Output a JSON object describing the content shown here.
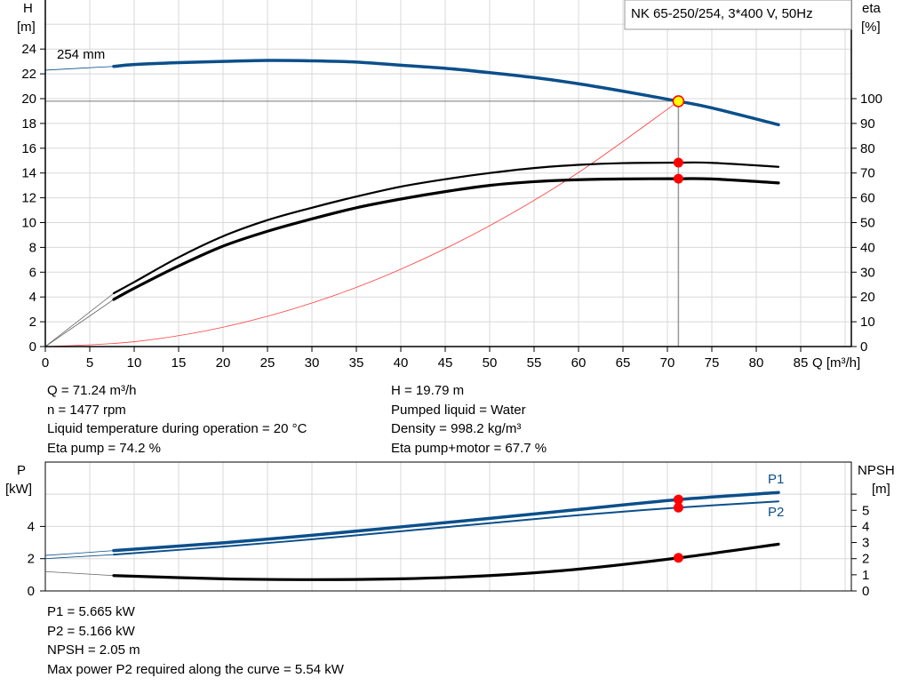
{
  "title": "NK 65-250/254, 3*400 V, 50Hz",
  "colors": {
    "blue": "#0b4f8a",
    "black": "#000000",
    "system": "#ff4040",
    "point": "#ff0000",
    "op_point": "#ffff00",
    "grid": "#d8d8d8"
  },
  "chart_data": [
    {
      "type": "line",
      "x_label": "Q [m³/h]",
      "y_label_left": [
        "H",
        "[m]"
      ],
      "y_label_right": [
        "eta",
        "[%]"
      ],
      "xlim": [
        0,
        90
      ],
      "x_ticks": [
        0,
        5,
        10,
        15,
        20,
        25,
        30,
        35,
        40,
        45,
        50,
        55,
        60,
        65,
        70,
        75,
        80,
        85
      ],
      "ylim_left": [
        0,
        28
      ],
      "y_ticks_left": [
        0,
        2,
        4,
        6,
        8,
        10,
        12,
        14,
        16,
        18,
        20,
        22,
        24
      ],
      "ylim_right": [
        0,
        140
      ],
      "y_ticks_right": [
        0,
        10,
        20,
        30,
        40,
        50,
        60,
        70,
        80,
        90,
        100
      ],
      "grid": true,
      "curve_label": "254 mm",
      "series": [
        {
          "key": "H",
          "axis": "left",
          "color": "#0b4f8a",
          "ext": [
            [
              0,
              22.3
            ],
            [
              7.7,
              22.6
            ]
          ],
          "points": [
            [
              7.7,
              22.6
            ],
            [
              10,
              22.75
            ],
            [
              15,
              22.9
            ],
            [
              20,
              23.0
            ],
            [
              25,
              23.08
            ],
            [
              30,
              23.05
            ],
            [
              35,
              22.95
            ],
            [
              40,
              22.7
            ],
            [
              45,
              22.45
            ],
            [
              50,
              22.1
            ],
            [
              55,
              21.7
            ],
            [
              60,
              21.2
            ],
            [
              65,
              20.6
            ],
            [
              71.24,
              19.79
            ],
            [
              75,
              19.25
            ],
            [
              82.5,
              17.9
            ]
          ]
        },
        {
          "key": "eta_pump",
          "axis": "right",
          "color": "#000000",
          "ext": [
            [
              0,
              0
            ],
            [
              7.7,
              21.5
            ]
          ],
          "points": [
            [
              7.7,
              21.5
            ],
            [
              10,
              26
            ],
            [
              15,
              36
            ],
            [
              20,
              44.5
            ],
            [
              25,
              51
            ],
            [
              30,
              56
            ],
            [
              35,
              60.5
            ],
            [
              40,
              64.5
            ],
            [
              45,
              67.5
            ],
            [
              50,
              70
            ],
            [
              55,
              72
            ],
            [
              60,
              73.3
            ],
            [
              65,
              74
            ],
            [
              71.24,
              74.2
            ],
            [
              75,
              74.1
            ],
            [
              82.5,
              72.5
            ]
          ]
        },
        {
          "key": "eta_pump_motor",
          "axis": "right",
          "color": "#000000",
          "ext": [
            [
              0,
              0
            ],
            [
              7.7,
              19
            ]
          ],
          "points": [
            [
              7.7,
              19
            ],
            [
              10,
              23.5
            ],
            [
              15,
              32.5
            ],
            [
              20,
              40.5
            ],
            [
              25,
              46.5
            ],
            [
              30,
              51.5
            ],
            [
              35,
              56
            ],
            [
              40,
              59.5
            ],
            [
              45,
              62.5
            ],
            [
              50,
              65
            ],
            [
              55,
              66.5
            ],
            [
              60,
              67.3
            ],
            [
              65,
              67.6
            ],
            [
              71.24,
              67.7
            ],
            [
              75,
              67.6
            ],
            [
              82.5,
              66
            ]
          ]
        },
        {
          "key": "system",
          "axis": "left",
          "color": "#ff4040",
          "points": [
            [
              0,
              0
            ],
            [
              10,
              0.39
            ],
            [
              20,
              1.56
            ],
            [
              30,
              3.51
            ],
            [
              40,
              6.24
            ],
            [
              50,
              9.75
            ],
            [
              60,
              14.04
            ],
            [
              71.24,
              19.79
            ]
          ]
        }
      ],
      "operating_point": {
        "Q": 71.24,
        "H": 19.79,
        "eta_pump": 74.2,
        "eta_pump_motor": 67.7
      }
    },
    {
      "type": "line",
      "y_label_left": [
        "P",
        "[kW]"
      ],
      "y_label_right": [
        "NPSH",
        "[m]"
      ],
      "xlim": [
        0,
        90
      ],
      "ylim_left": [
        0,
        8
      ],
      "y_ticks_left": [
        0,
        2,
        4
      ],
      "ylim_right": [
        0,
        8
      ],
      "y_ticks_right": [
        0,
        1,
        2,
        3,
        4,
        5
      ],
      "grid": true,
      "series": [
        {
          "name": "P1",
          "axis": "left",
          "color": "#0b4f8a",
          "ext": [
            [
              0,
              2.2
            ],
            [
              7.7,
              2.5
            ]
          ],
          "points": [
            [
              7.7,
              2.5
            ],
            [
              20,
              2.98
            ],
            [
              30,
              3.45
            ],
            [
              40,
              3.97
            ],
            [
              50,
              4.5
            ],
            [
              60,
              5.05
            ],
            [
              71.24,
              5.665
            ],
            [
              82.5,
              6.1
            ]
          ]
        },
        {
          "name": "P2",
          "axis": "left",
          "color": "#0b4f8a",
          "ext": [
            [
              0,
              2.0
            ],
            [
              7.7,
              2.25
            ]
          ],
          "points": [
            [
              7.7,
              2.25
            ],
            [
              20,
              2.75
            ],
            [
              30,
              3.2
            ],
            [
              40,
              3.7
            ],
            [
              50,
              4.2
            ],
            [
              60,
              4.7
            ],
            [
              71.24,
              5.166
            ],
            [
              82.5,
              5.55
            ]
          ]
        },
        {
          "key": "NPSH",
          "axis": "right",
          "color": "#000000",
          "ext": [
            [
              0,
              1.2
            ],
            [
              7.7,
              0.95
            ]
          ],
          "points": [
            [
              7.7,
              0.95
            ],
            [
              20,
              0.75
            ],
            [
              30,
              0.7
            ],
            [
              40,
              0.75
            ],
            [
              50,
              0.95
            ],
            [
              60,
              1.35
            ],
            [
              71.24,
              2.05
            ],
            [
              82.5,
              2.9
            ]
          ]
        }
      ],
      "operating_point": {
        "Q": 71.24,
        "P1": 5.665,
        "P2": 5.166,
        "NPSH": 2.05
      }
    }
  ],
  "info_top_left": [
    "Q = 71.24 m³/h",
    "n = 1477 rpm",
    "Liquid temperature during operation = 20 °C",
    "Eta pump = 74.2 %"
  ],
  "info_top_right": [
    "H = 19.79 m",
    "Pumped liquid = Water",
    "Density = 998.2 kg/m³",
    "Eta pump+motor = 67.7 %"
  ],
  "info_bottom": [
    "P1 = 5.665 kW",
    "P2 = 5.166 kW",
    "NPSH = 2.05 m",
    "Max power P2 required along the curve = 5.54 kW"
  ]
}
